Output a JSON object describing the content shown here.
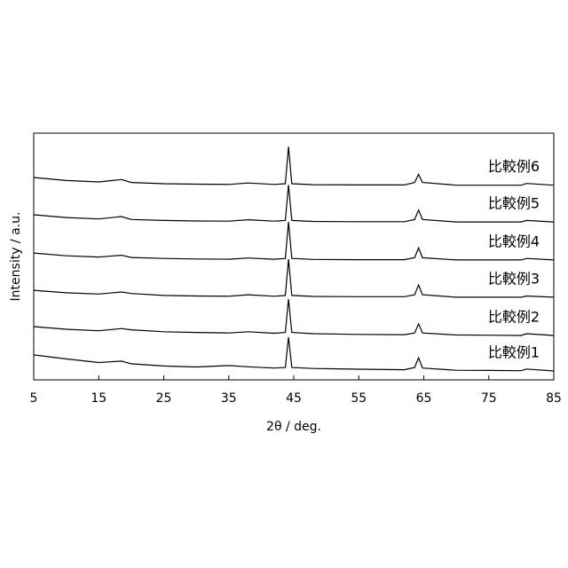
{
  "chart_data": {
    "type": "line",
    "xlabel": "2θ / deg.",
    "ylabel": "Intensity / a.u.",
    "xlim": [
      5,
      85
    ],
    "xticks": [
      5,
      15,
      25,
      35,
      45,
      55,
      65,
      75,
      85
    ],
    "ylim": [
      0,
      100
    ],
    "x": [
      5,
      10,
      15,
      18.5,
      20,
      25,
      30,
      35,
      38,
      42,
      43.7,
      44.2,
      44.7,
      48,
      55,
      62,
      63.6,
      64.2,
      64.8,
      70,
      75,
      80,
      80.8,
      85
    ],
    "series": [
      {
        "name": "比較例1",
        "color": "#000000",
        "values": [
          10.1,
          8.5,
          7,
          7.6,
          6.5,
          5.6,
          5.2,
          5.8,
          5.3,
          4.8,
          5,
          17.3,
          5,
          4.6,
          4.3,
          4.1,
          5,
          9,
          4.8,
          3.9,
          3.8,
          3.7,
          4.4,
          3.6
        ]
      },
      {
        "name": "比較例2",
        "color": "#000000",
        "values": [
          21.6,
          20.5,
          19.9,
          20.8,
          20.3,
          19.5,
          19.2,
          19,
          19.5,
          18.9,
          19.2,
          32.7,
          19.2,
          18.7,
          18.4,
          18.3,
          19,
          22.7,
          19,
          18.2,
          18.1,
          18,
          18.7,
          18
        ]
      },
      {
        "name": "比較例3",
        "color": "#000000",
        "values": [
          36.3,
          35.3,
          34.8,
          35.6,
          35,
          34.2,
          34,
          33.9,
          34.5,
          33.9,
          34.2,
          48.9,
          34.2,
          33.8,
          33.7,
          33.7,
          34.5,
          38.5,
          34.5,
          33.5,
          33.5,
          33.5,
          34,
          33.5
        ]
      },
      {
        "name": "比較例4",
        "color": "#000000",
        "values": [
          51.4,
          50.3,
          49.8,
          50.5,
          49.6,
          49.2,
          49,
          48.9,
          49.4,
          48.9,
          49.2,
          64,
          49.2,
          48.8,
          48.7,
          48.7,
          49.5,
          53.5,
          49.5,
          48.6,
          48.6,
          48.6,
          49.2,
          48.6
        ]
      },
      {
        "name": "比較例5",
        "color": "#000000",
        "values": [
          66.9,
          65.8,
          65.2,
          66.2,
          65,
          64.6,
          64.4,
          64.3,
          64.9,
          64.3,
          64.6,
          79,
          64.6,
          64.2,
          64.1,
          64.1,
          65,
          68.8,
          65,
          64,
          64,
          64,
          64.6,
          64
        ]
      },
      {
        "name": "比較例6",
        "color": "#000000",
        "values": [
          82,
          80.8,
          80.2,
          81.2,
          80,
          79.5,
          79.3,
          79.2,
          79.8,
          79.2,
          79.5,
          94.5,
          79.5,
          79.1,
          79,
          79,
          80,
          83.3,
          80,
          78.9,
          78.9,
          78.9,
          79.6,
          78.9
        ]
      }
    ]
  }
}
